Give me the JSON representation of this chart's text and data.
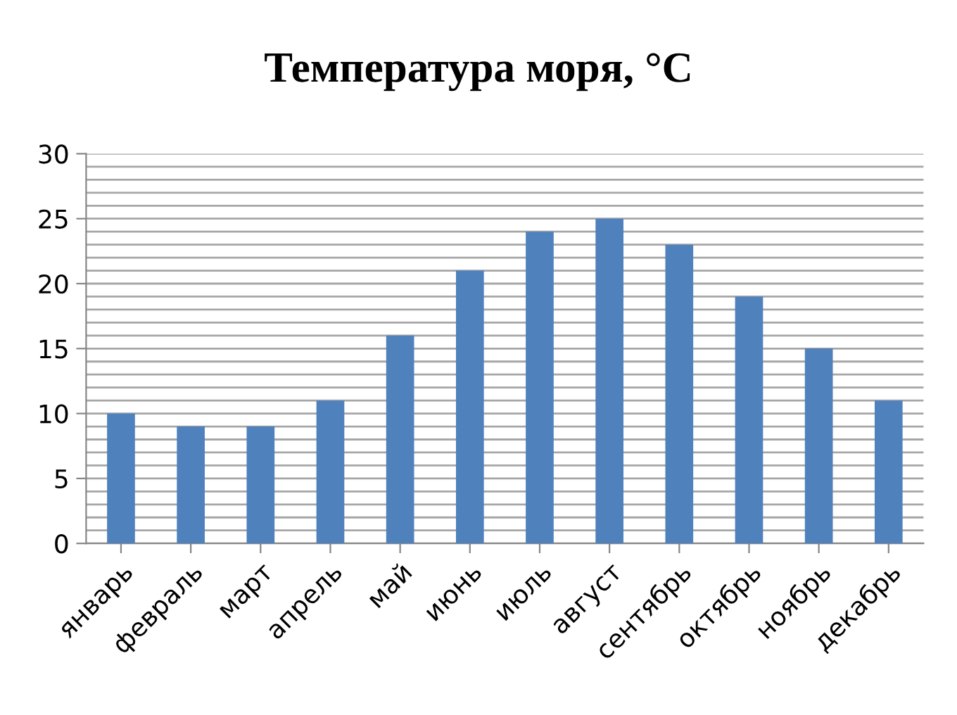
{
  "chart_data": {
    "type": "bar",
    "title": "Температура моря, °C",
    "categories": [
      "январь",
      "февраль",
      "март",
      "апрель",
      "май",
      "июнь",
      "июль",
      "август",
      "сентябрь",
      "октябрь",
      "ноябрь",
      "декабрь"
    ],
    "values": [
      10,
      9,
      9,
      11,
      16,
      21,
      24,
      25,
      23,
      19,
      15,
      11
    ],
    "color": "#4f81bd",
    "ylim": [
      0,
      30
    ],
    "yticks": [
      0,
      {
        "value": 1,
        "label": null
      },
      {
        "value": 2,
        "label": null
      },
      {
        "value": 3,
        "label": null
      },
      {
        "value": 4,
        "label": null
      },
      5,
      {
        "value": 6,
        "label": null
      },
      {
        "value": 7,
        "label": null
      },
      {
        "value": 8,
        "label": null
      },
      {
        "value": 9,
        "label": null
      },
      10,
      {
        "value": 11,
        "label": null
      },
      {
        "value": 12,
        "label": null
      },
      {
        "value": 13,
        "label": null
      },
      {
        "value": 14,
        "label": null
      },
      15,
      {
        "value": 16,
        "label": null
      },
      {
        "value": 17,
        "label": null
      },
      {
        "value": 18,
        "label": null
      },
      {
        "value": 19,
        "label": null
      },
      20,
      {
        "value": 21,
        "label": null
      },
      {
        "value": 22,
        "label": null
      },
      {
        "value": 23,
        "label": null
      },
      {
        "value": 24,
        "label": null
      },
      25,
      {
        "value": 26,
        "label": null
      },
      {
        "value": 27,
        "label": null
      },
      {
        "value": 28,
        "label": null
      },
      {
        "value": 29,
        "label": null
      },
      30
    ],
    "grid": "y"
  }
}
